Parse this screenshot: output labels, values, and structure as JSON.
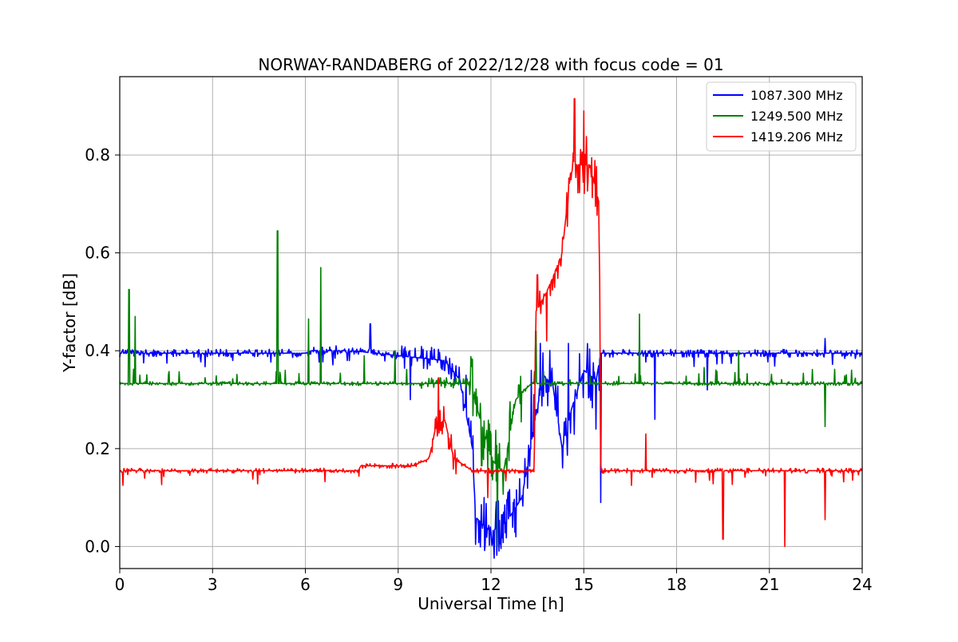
{
  "chart_data": {
    "type": "line",
    "title": "NORWAY-RANDABERG of 2022/12/28 with focus code = 01",
    "xlabel": "Universal Time [h]",
    "ylabel": "Y-factor [dB]",
    "xlim": [
      0,
      24
    ],
    "ylim": [
      -0.045,
      0.96
    ],
    "xticks": [
      0,
      3,
      6,
      9,
      12,
      15,
      18,
      21,
      24
    ],
    "xtick_labels": [
      "0",
      "3",
      "6",
      "9",
      "12",
      "15",
      "18",
      "21",
      "24"
    ],
    "yticks": [
      0.0,
      0.2,
      0.4,
      0.6,
      0.8
    ],
    "ytick_labels": [
      "0.0",
      "0.2",
      "0.4",
      "0.6",
      "0.8"
    ],
    "grid": true,
    "legend_position": "top-right",
    "series": [
      {
        "name": "1087.300 MHz",
        "color": "#0000ff",
        "baseline": [
          [
            0,
            0.395
          ],
          [
            6,
            0.395
          ],
          [
            6.2,
            0.4
          ],
          [
            7.5,
            0.4
          ],
          [
            9,
            0.39
          ],
          [
            10.5,
            0.38
          ],
          [
            11.0,
            0.34
          ],
          [
            11.4,
            0.2
          ],
          [
            11.5,
            0.06
          ],
          [
            12.0,
            0.03
          ],
          [
            12.5,
            0.05
          ],
          [
            13.0,
            0.1
          ],
          [
            13.4,
            0.25
          ],
          [
            13.7,
            0.35
          ],
          [
            14.0,
            0.33
          ],
          [
            14.3,
            0.2
          ],
          [
            14.6,
            0.28
          ],
          [
            15.0,
            0.36
          ],
          [
            15.4,
            0.34
          ],
          [
            15.55,
            0.395
          ],
          [
            24,
            0.395
          ]
        ],
        "peaks": [
          [
            0.35,
            0.4
          ],
          [
            7.0,
            0.41
          ],
          [
            8.1,
            0.455
          ],
          [
            9.4,
            0.3
          ],
          [
            10.5,
            0.36
          ],
          [
            11.2,
            0.35
          ],
          [
            11.6,
            0.008
          ],
          [
            12.3,
            0.006
          ],
          [
            12.8,
            0.02
          ],
          [
            13.3,
            0.36
          ],
          [
            13.6,
            0.415
          ],
          [
            14.5,
            0.415
          ],
          [
            15.4,
            0.24
          ],
          [
            15.55,
            0.09
          ],
          [
            17.3,
            0.26
          ],
          [
            19.0,
            0.32
          ],
          [
            22.8,
            0.425
          ]
        ]
      },
      {
        "name": "1249.500 MHz",
        "color": "#008000",
        "baseline": [
          [
            0,
            0.333
          ],
          [
            9.5,
            0.333
          ],
          [
            11.3,
            0.333
          ],
          [
            11.7,
            0.25
          ],
          [
            12.0,
            0.18
          ],
          [
            12.4,
            0.15
          ],
          [
            12.8,
            0.3
          ],
          [
            13.3,
            0.333
          ],
          [
            24,
            0.333
          ]
        ],
        "peaks": [
          [
            0.3,
            0.525
          ],
          [
            0.5,
            0.47
          ],
          [
            5.1,
            0.645
          ],
          [
            6.1,
            0.465
          ],
          [
            6.5,
            0.57
          ],
          [
            7.9,
            0.39
          ],
          [
            8.9,
            0.4
          ],
          [
            10.2,
            0.335
          ],
          [
            11.7,
            0.165
          ],
          [
            12.2,
            0.0
          ],
          [
            12.9,
            0.33
          ],
          [
            13.45,
            0.44
          ],
          [
            16.8,
            0.475
          ],
          [
            20.0,
            0.4
          ],
          [
            22.8,
            0.245
          ]
        ]
      },
      {
        "name": "1419.206 MHz",
        "color": "#ff0000",
        "baseline": [
          [
            0,
            0.155
          ],
          [
            7.7,
            0.155
          ],
          [
            7.8,
            0.165
          ],
          [
            9.5,
            0.165
          ],
          [
            10.0,
            0.18
          ],
          [
            10.2,
            0.24
          ],
          [
            10.5,
            0.26
          ],
          [
            10.8,
            0.18
          ],
          [
            11.4,
            0.155
          ],
          [
            13.0,
            0.155
          ],
          [
            13.4,
            0.155
          ],
          [
            13.45,
            0.48
          ],
          [
            13.8,
            0.52
          ],
          [
            14.0,
            0.55
          ],
          [
            14.3,
            0.6
          ],
          [
            14.6,
            0.78
          ],
          [
            15.2,
            0.78
          ],
          [
            15.5,
            0.7
          ],
          [
            15.55,
            0.155
          ],
          [
            24,
            0.155
          ]
        ],
        "peaks": [
          [
            0.1,
            0.125
          ],
          [
            10.3,
            0.345
          ],
          [
            11.9,
            0.1
          ],
          [
            13.5,
            0.555
          ],
          [
            13.8,
            0.42
          ],
          [
            14.7,
            0.915
          ],
          [
            15.0,
            0.89
          ],
          [
            15.5,
            0.62
          ],
          [
            17.0,
            0.23
          ],
          [
            19.5,
            0.015
          ],
          [
            21.5,
            0.0
          ],
          [
            22.8,
            0.055
          ]
        ]
      }
    ]
  }
}
